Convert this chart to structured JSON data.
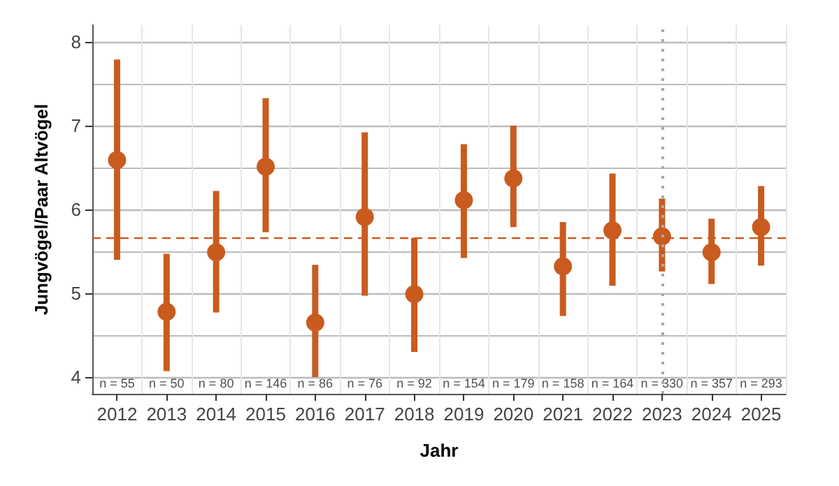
{
  "chart_data": {
    "type": "scatter",
    "xlabel": "Jahr",
    "ylabel": "Jungvögel/Paar Altvögel",
    "categories": [
      "2012",
      "2013",
      "2014",
      "2015",
      "2016",
      "2017",
      "2018",
      "2019",
      "2020",
      "2021",
      "2022",
      "2023",
      "2024",
      "2025"
    ],
    "series": [
      {
        "color": "#c95b1f",
        "values": [
          6.59,
          4.78,
          5.49,
          6.51,
          4.65,
          5.91,
          4.99,
          6.11,
          6.37,
          5.32,
          5.75,
          5.68,
          5.49,
          5.79
        ],
        "errors": [
          [
            5.4,
            7.79
          ],
          [
            4.07,
            5.47
          ],
          [
            4.77,
            6.22
          ],
          [
            5.73,
            7.33
          ],
          [
            4.0,
            5.34
          ],
          [
            4.97,
            6.92
          ],
          [
            4.3,
            5.66
          ],
          [
            5.42,
            6.78
          ],
          [
            5.79,
            7.0
          ],
          [
            4.73,
            5.85
          ],
          [
            5.09,
            6.43
          ],
          [
            5.26,
            6.13
          ],
          [
            5.11,
            5.89
          ],
          [
            5.33,
            6.28
          ]
        ]
      }
    ],
    "marker": "circle",
    "ylim": [
      3.8,
      8.2
    ],
    "yticks": [
      4,
      5,
      6,
      7,
      8
    ],
    "grid": true,
    "ref_lines": [
      {
        "axis": "y",
        "value": 5.67,
        "color": "#c95b1f",
        "line_style": "dashed"
      },
      {
        "axis": "x",
        "value": "2023",
        "color": "#aaaaaa",
        "line_style": "dotted"
      }
    ],
    "annotations": [
      "n = 55",
      "n = 50",
      "n = 80",
      "n = 146",
      "n = 86",
      "n = 76",
      "n = 92",
      "n = 154",
      "n = 179",
      "n = 158",
      "n = 164",
      "n = 330",
      "n = 357",
      "n = 293"
    ]
  }
}
